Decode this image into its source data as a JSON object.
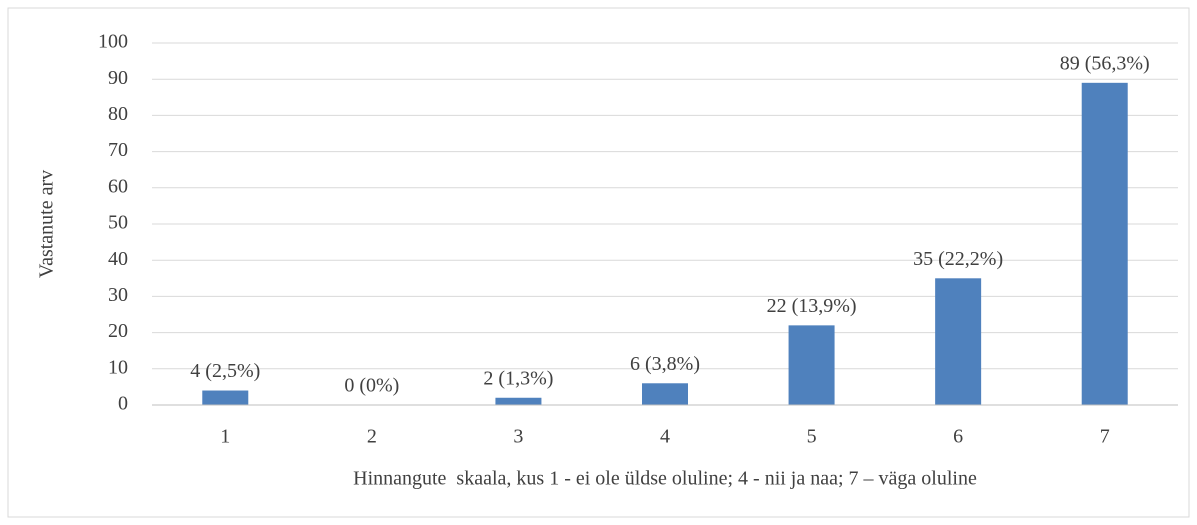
{
  "chart_data": {
    "type": "bar",
    "y_label": "Vastanute arv",
    "x_label": "Hinnangute  skaala, kus 1 - ei ole üldse oluline; 4 - nii ja naa; 7 – väga oluline",
    "categories": [
      "1",
      "2",
      "3",
      "4",
      "5",
      "6",
      "7"
    ],
    "values": [
      4,
      0,
      2,
      6,
      22,
      35,
      89
    ],
    "value_labels": [
      "4 (2,5%)",
      "0 (0%)",
      "2 (1,3%)",
      "6 (3,8%)",
      "22 (13,9%)",
      "35 (22,2%)",
      "89 (56,3%)"
    ],
    "color": "#4f81bd",
    "ylim": [
      0,
      100
    ],
    "yticks": [
      0,
      10,
      20,
      30,
      40,
      50,
      60,
      70,
      80,
      90,
      100
    ],
    "grid": true
  }
}
